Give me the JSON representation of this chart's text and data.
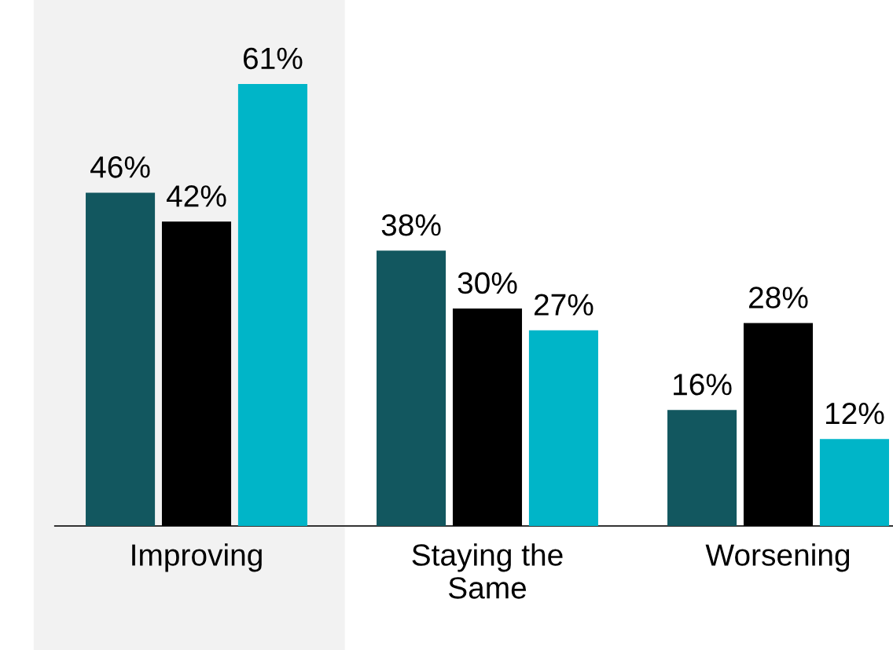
{
  "chart_data": {
    "type": "bar",
    "categories": [
      "Improving",
      "Staying the\nSame",
      "Worsening"
    ],
    "series": [
      {
        "color": "#12575f",
        "values": [
          46,
          38,
          16
        ],
        "value_labels": [
          "46%",
          "38%",
          "16%"
        ]
      },
      {
        "color": "#000000",
        "values": [
          42,
          30,
          28
        ],
        "value_labels": [
          "42%",
          "30%",
          "28%"
        ]
      },
      {
        "color": "#00b5c8",
        "values": [
          61,
          27,
          12
        ],
        "value_labels": [
          "61%",
          "27%",
          "12%"
        ]
      }
    ],
    "bands": [
      {
        "axis": "x",
        "from": "Improving",
        "to": "Improving",
        "color": "#f2f2f2"
      }
    ],
    "grid": false,
    "legend": false
  }
}
